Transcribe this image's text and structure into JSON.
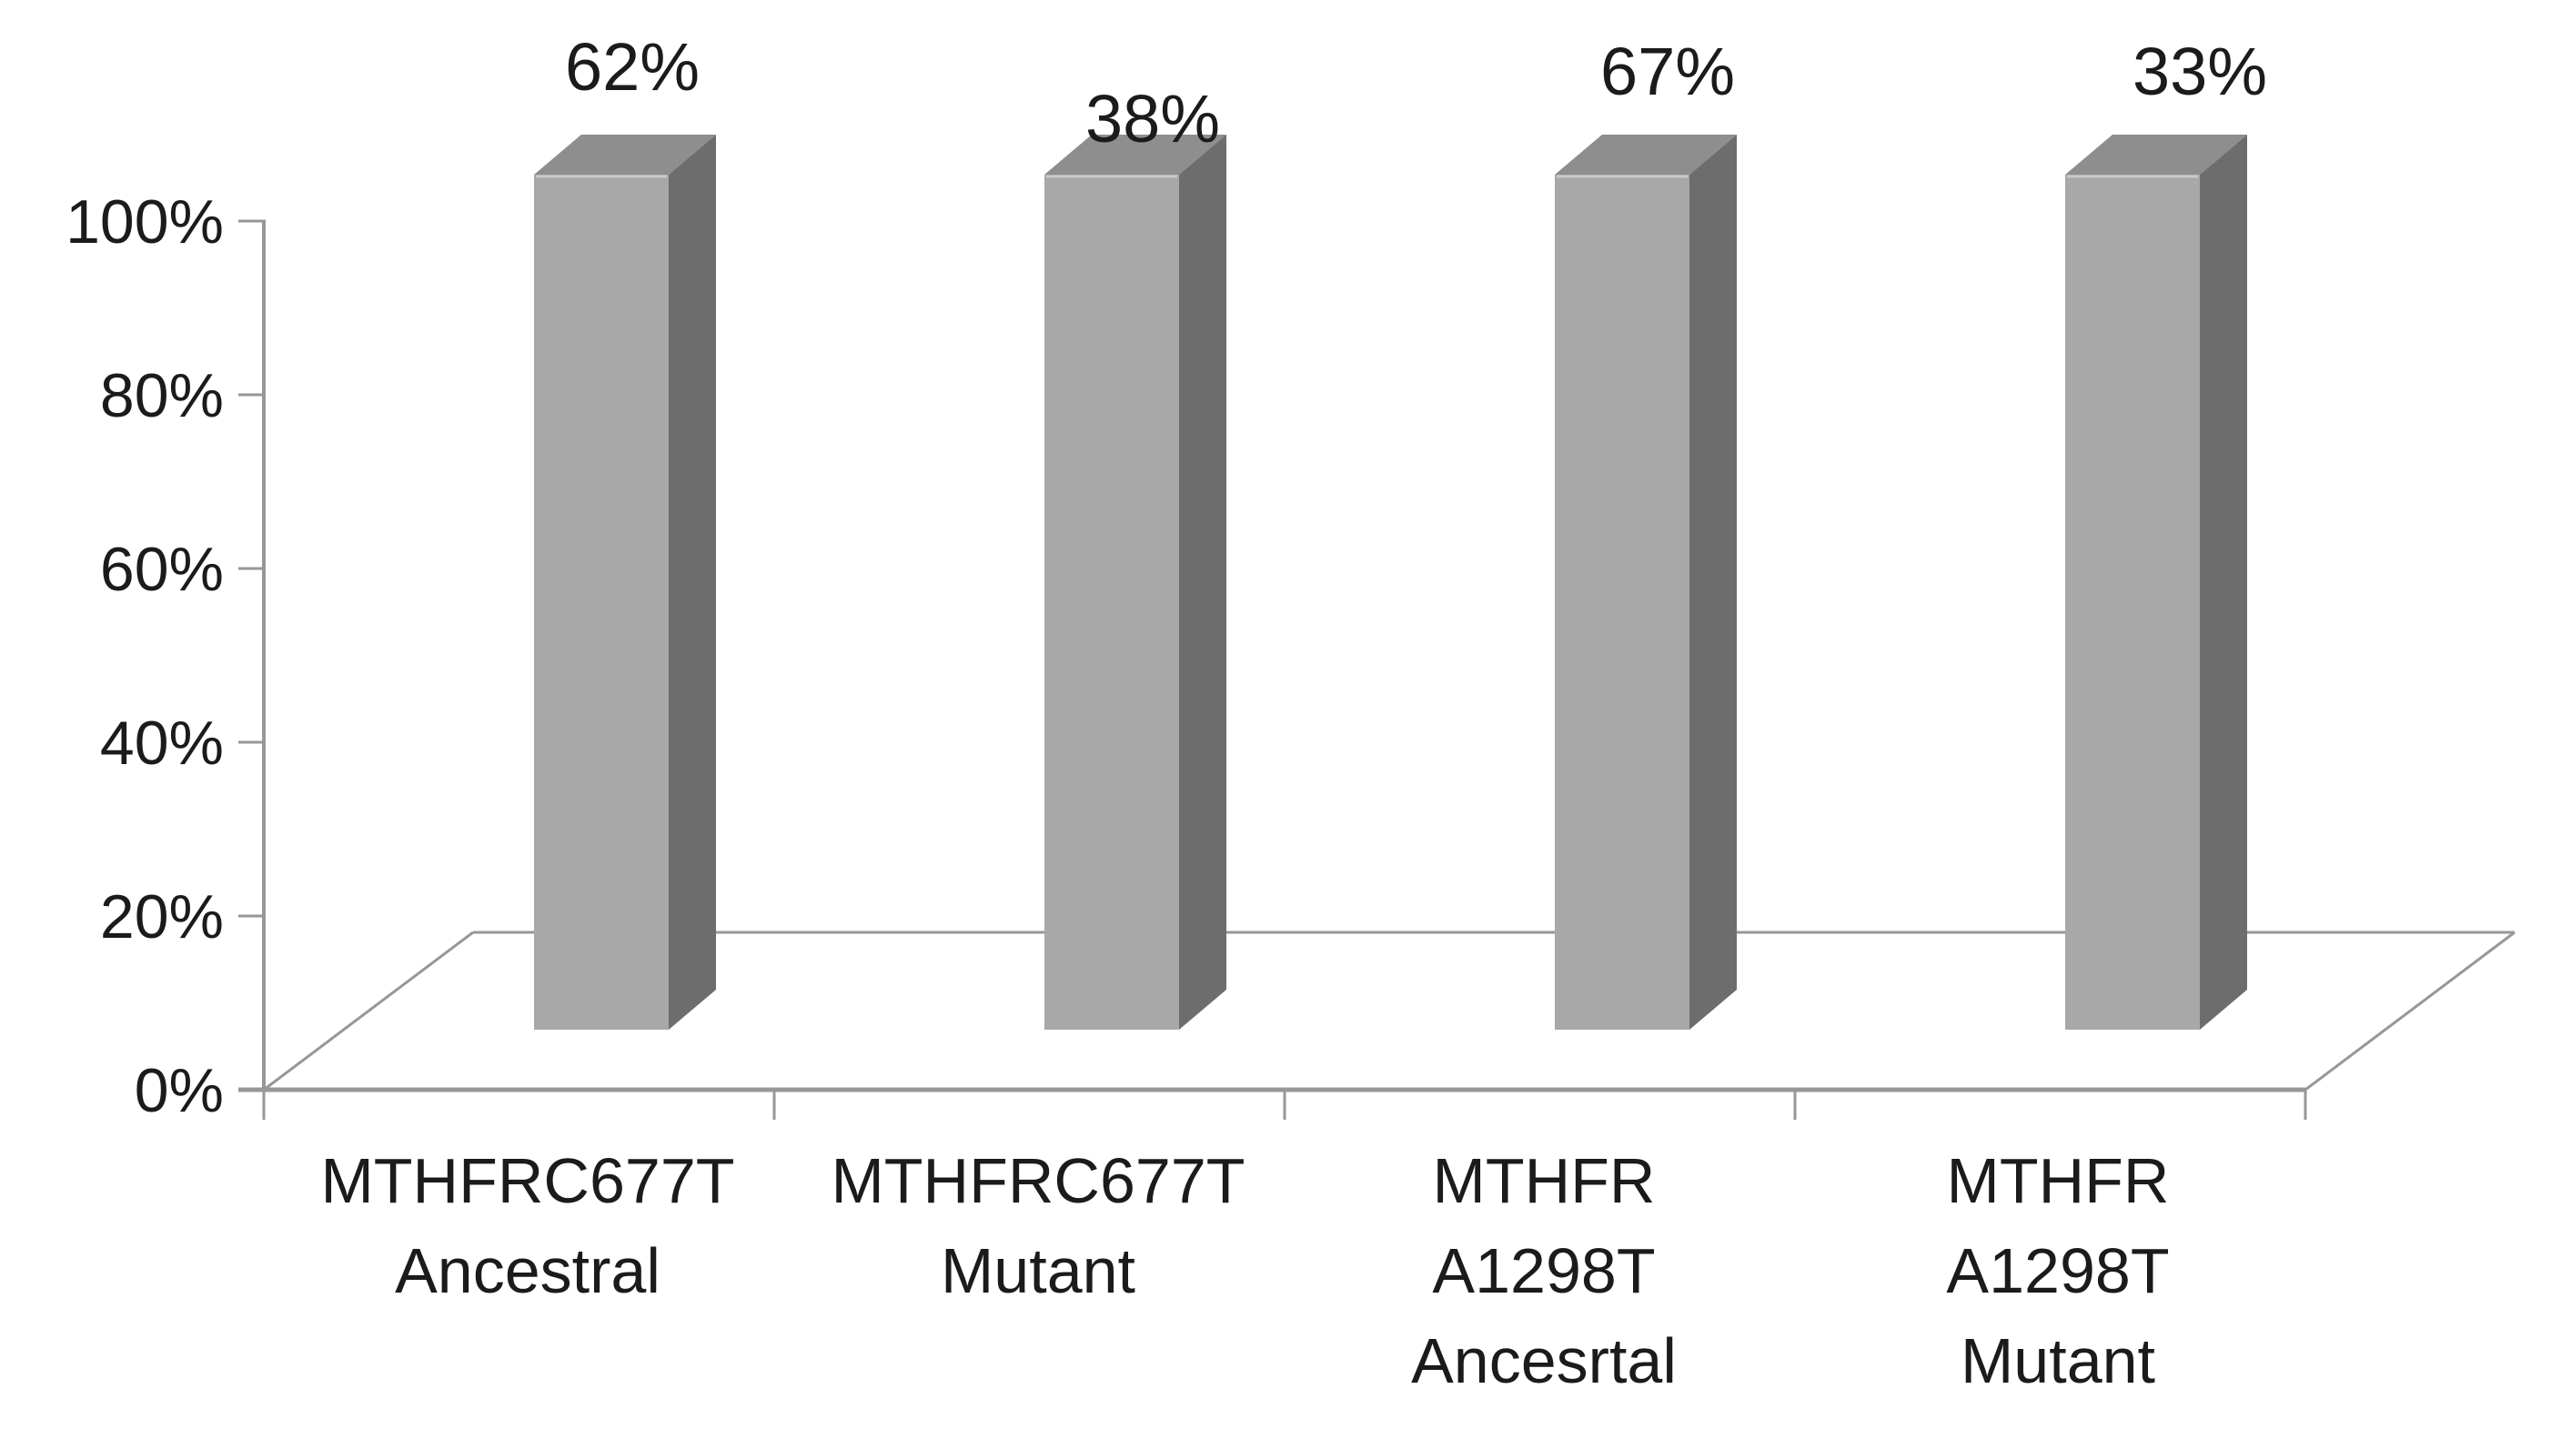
{
  "chart_data": {
    "type": "bar",
    "style": "3d-column",
    "title": "",
    "xlabel": "",
    "ylabel": "",
    "legend": false,
    "grid": false,
    "background": "#ffffff",
    "categories": [
      {
        "lines": [
          "MTHFRC677T",
          "Ancestral"
        ]
      },
      {
        "lines": [
          "MTHFRC677T",
          "Mutant"
        ]
      },
      {
        "lines": [
          "MTHFR",
          "A1298T",
          "Ancesrtal"
        ]
      },
      {
        "lines": [
          "MTHFR",
          "A1298T",
          "Mutant"
        ]
      }
    ],
    "values": [
      62,
      38,
      67,
      33
    ],
    "value_labels": [
      "62%",
      "38%",
      "67%",
      "33%"
    ],
    "y_axis": {
      "min": 0,
      "max": 100,
      "ticks": [
        {
          "value": 0,
          "label": "0%"
        },
        {
          "value": 20,
          "label": "20%"
        },
        {
          "value": 40,
          "label": "40%"
        },
        {
          "value": 60,
          "label": "60%"
        },
        {
          "value": 80,
          "label": "80%"
        },
        {
          "value": 100,
          "label": "100%"
        }
      ]
    },
    "bars_rendered_equal_height": true,
    "colors": {
      "bar_front": "#a8a8a8",
      "bar_top": "#8e8e8e",
      "bar_side": "#6d6d6d",
      "bar_top_edge_highlight": "#c9c9c9",
      "axis_line": "#979797",
      "text": "#1b1b1b",
      "background": "#ffffff"
    }
  }
}
